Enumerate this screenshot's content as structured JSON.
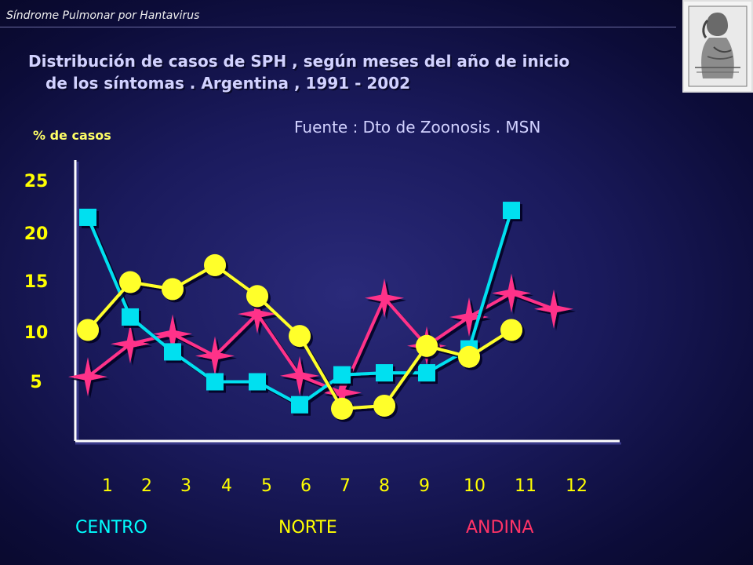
{
  "header": {
    "running_title": "Síndrome Pulmonar por Hantavirus"
  },
  "title": {
    "line1": "Distribución de casos de SPH , según meses del año de inicio",
    "line2": "de los síntomas . Argentina , 1991 - 2002"
  },
  "source": "Fuente : Dto de Zoonosis . MSN",
  "regions": {
    "centro": "CENTRO",
    "norte": "NORTE",
    "andina": "ANDINA"
  },
  "colors": {
    "centro": "#00e0f0",
    "norte": "#ffff2a",
    "andina": "#ff3389",
    "tick_labels": "#ffff00",
    "axis": "#ffffff"
  },
  "chart_data": {
    "type": "line",
    "ylabel": "% de casos",
    "categories": [
      "1",
      "2",
      "3",
      "4",
      "5",
      "6",
      "7",
      "8",
      "9",
      "10",
      "11",
      "12"
    ],
    "yticks": [
      5,
      10,
      15,
      20,
      25
    ],
    "ylim": [
      0,
      27
    ],
    "series": [
      {
        "name": "CENTRO",
        "marker": "square",
        "color_key": "centro",
        "values": [
          21.5,
          11.5,
          8.0,
          5.0,
          5.0,
          2.7,
          5.7,
          5.9,
          5.9,
          8.3,
          22.2,
          null
        ]
      },
      {
        "name": "NORTE",
        "marker": "circle",
        "color_key": "norte",
        "values": [
          10.2,
          15.0,
          14.3,
          16.7,
          13.6,
          9.6,
          2.3,
          2.6,
          8.6,
          7.5,
          10.2,
          null
        ]
      },
      {
        "name": "ANDINA",
        "marker": "star",
        "color_key": "andina",
        "values": [
          5.5,
          8.8,
          9.8,
          7.6,
          11.8,
          5.6,
          3.9,
          13.4,
          8.6,
          11.5,
          13.9,
          12.3
        ]
      }
    ]
  }
}
